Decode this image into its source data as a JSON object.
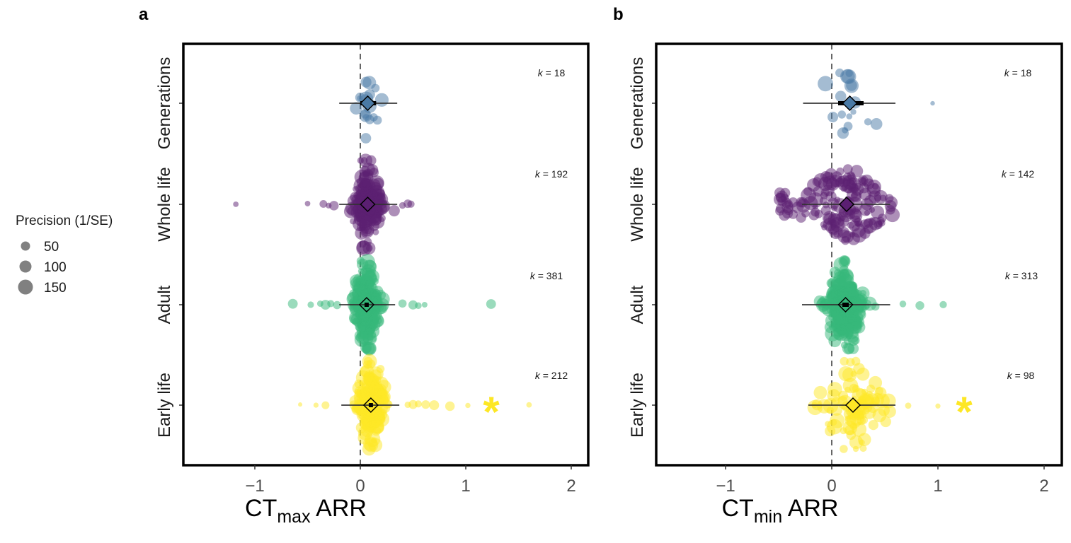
{
  "chart_data": [
    {
      "type": "scatter",
      "subtype": "orchard-plot",
      "panel_label": "a",
      "xlabel_main": "CT",
      "xlabel_sub": "max",
      "xlabel_tail": " ARR",
      "xlim": [
        -1.7,
        2.2
      ],
      "xticks": [
        -1,
        0,
        1,
        2
      ],
      "xtick_labels": [
        "−1",
        "0",
        "1",
        "2"
      ],
      "reference_line": 0,
      "categories": [
        "Generations",
        "Whole life",
        "Adult",
        "Early life"
      ],
      "groups": [
        {
          "name": "Generations",
          "k": 18,
          "k_label": "k = 18",
          "color": "#4a7aa5",
          "estimate": 0.07,
          "ci": [
            0.0,
            0.15
          ],
          "pi": [
            -0.2,
            0.35
          ],
          "significant": false,
          "mean_filled": true,
          "points_x_range": [
            -0.02,
            0.12
          ],
          "outliers": [],
          "spread": 0.12,
          "n_points": 18
        },
        {
          "name": "Whole life",
          "k": 192,
          "k_label": "k = 192",
          "color": "#5b1f72",
          "estimate": 0.07,
          "ci": [
            0.05,
            0.1
          ],
          "pi": [
            -0.2,
            0.35
          ],
          "significant": false,
          "mean_filled": true,
          "outliers": [
            -1.18,
            -0.5,
            -0.35,
            -0.3,
            -0.25,
            0.4,
            0.45,
            0.48
          ],
          "spread": 0.12,
          "n_points": 192
        },
        {
          "name": "Adult",
          "k": 381,
          "k_label": "k = 381",
          "color": "#35b779",
          "estimate": 0.06,
          "ci": [
            0.04,
            0.08
          ],
          "pi": [
            -0.2,
            0.33
          ],
          "significant": false,
          "mean_filled": false,
          "outliers": [
            -0.64,
            -0.47,
            -0.38,
            -0.33,
            -0.28,
            -0.22,
            0.4,
            0.5,
            0.55,
            0.61,
            1.24
          ],
          "spread": 0.1,
          "n_points": 381
        },
        {
          "name": "Early life",
          "k": 212,
          "k_label": "k = 212",
          "color": "#fde725",
          "estimate": 0.1,
          "ci": [
            0.08,
            0.12
          ],
          "pi": [
            -0.18,
            0.37
          ],
          "significant": true,
          "mean_filled": false,
          "outliers": [
            -0.57,
            -0.42,
            -0.33,
            0.45,
            0.5,
            0.55,
            0.62,
            0.7,
            0.85,
            1.02,
            1.6
          ],
          "spread": 0.12,
          "n_points": 212
        }
      ]
    },
    {
      "type": "scatter",
      "subtype": "orchard-plot",
      "panel_label": "b",
      "xlabel_main": "CT",
      "xlabel_sub": "min",
      "xlabel_tail": " ARR",
      "xlim": [
        -1.7,
        2.2
      ],
      "xticks": [
        -1,
        0,
        1,
        2
      ],
      "xtick_labels": [
        "−1",
        "0",
        "1",
        "2"
      ],
      "reference_line": 0,
      "categories": [
        "Generations",
        "Whole life",
        "Adult",
        "Early life"
      ],
      "groups": [
        {
          "name": "Generations",
          "k": 18,
          "k_label": "k = 18",
          "color": "#4a7aa5",
          "estimate": 0.17,
          "ci": [
            0.06,
            0.3
          ],
          "pi": [
            -0.27,
            0.6
          ],
          "significant": false,
          "mean_filled": true,
          "outliers": [
            0.95
          ],
          "spread": 0.2,
          "n_points": 18
        },
        {
          "name": "Whole life",
          "k": 142,
          "k_label": "k = 142",
          "color": "#5b1f72",
          "estimate": 0.14,
          "ci": [
            0.09,
            0.19
          ],
          "pi": [
            -0.28,
            0.55
          ],
          "significant": false,
          "mean_filled": true,
          "outliers": [],
          "spread": 0.35,
          "n_points": 142
        },
        {
          "name": "Adult",
          "k": 313,
          "k_label": "k = 313",
          "color": "#35b779",
          "estimate": 0.13,
          "ci": [
            0.1,
            0.16
          ],
          "pi": [
            -0.28,
            0.55
          ],
          "significant": false,
          "mean_filled": false,
          "outliers": [
            0.67,
            0.83,
            1.05
          ],
          "spread": 0.15,
          "n_points": 313
        },
        {
          "name": "Early life",
          "k": 98,
          "k_label": "k = 98",
          "color": "#fde725",
          "estimate": 0.2,
          "ci": [
            0.15,
            0.25
          ],
          "pi": [
            -0.22,
            0.6
          ],
          "significant": true,
          "mean_filled": false,
          "outliers": [
            0.72,
            1.0
          ],
          "spread": 0.28,
          "n_points": 98
        }
      ]
    }
  ],
  "legend": {
    "title": "Precision (1/SE)",
    "items": [
      {
        "label": "50",
        "value": 50
      },
      {
        "label": "100",
        "value": 100
      },
      {
        "label": "150",
        "value": 150
      }
    ],
    "position": "left",
    "color": "#808080"
  },
  "significance_marker": "*"
}
